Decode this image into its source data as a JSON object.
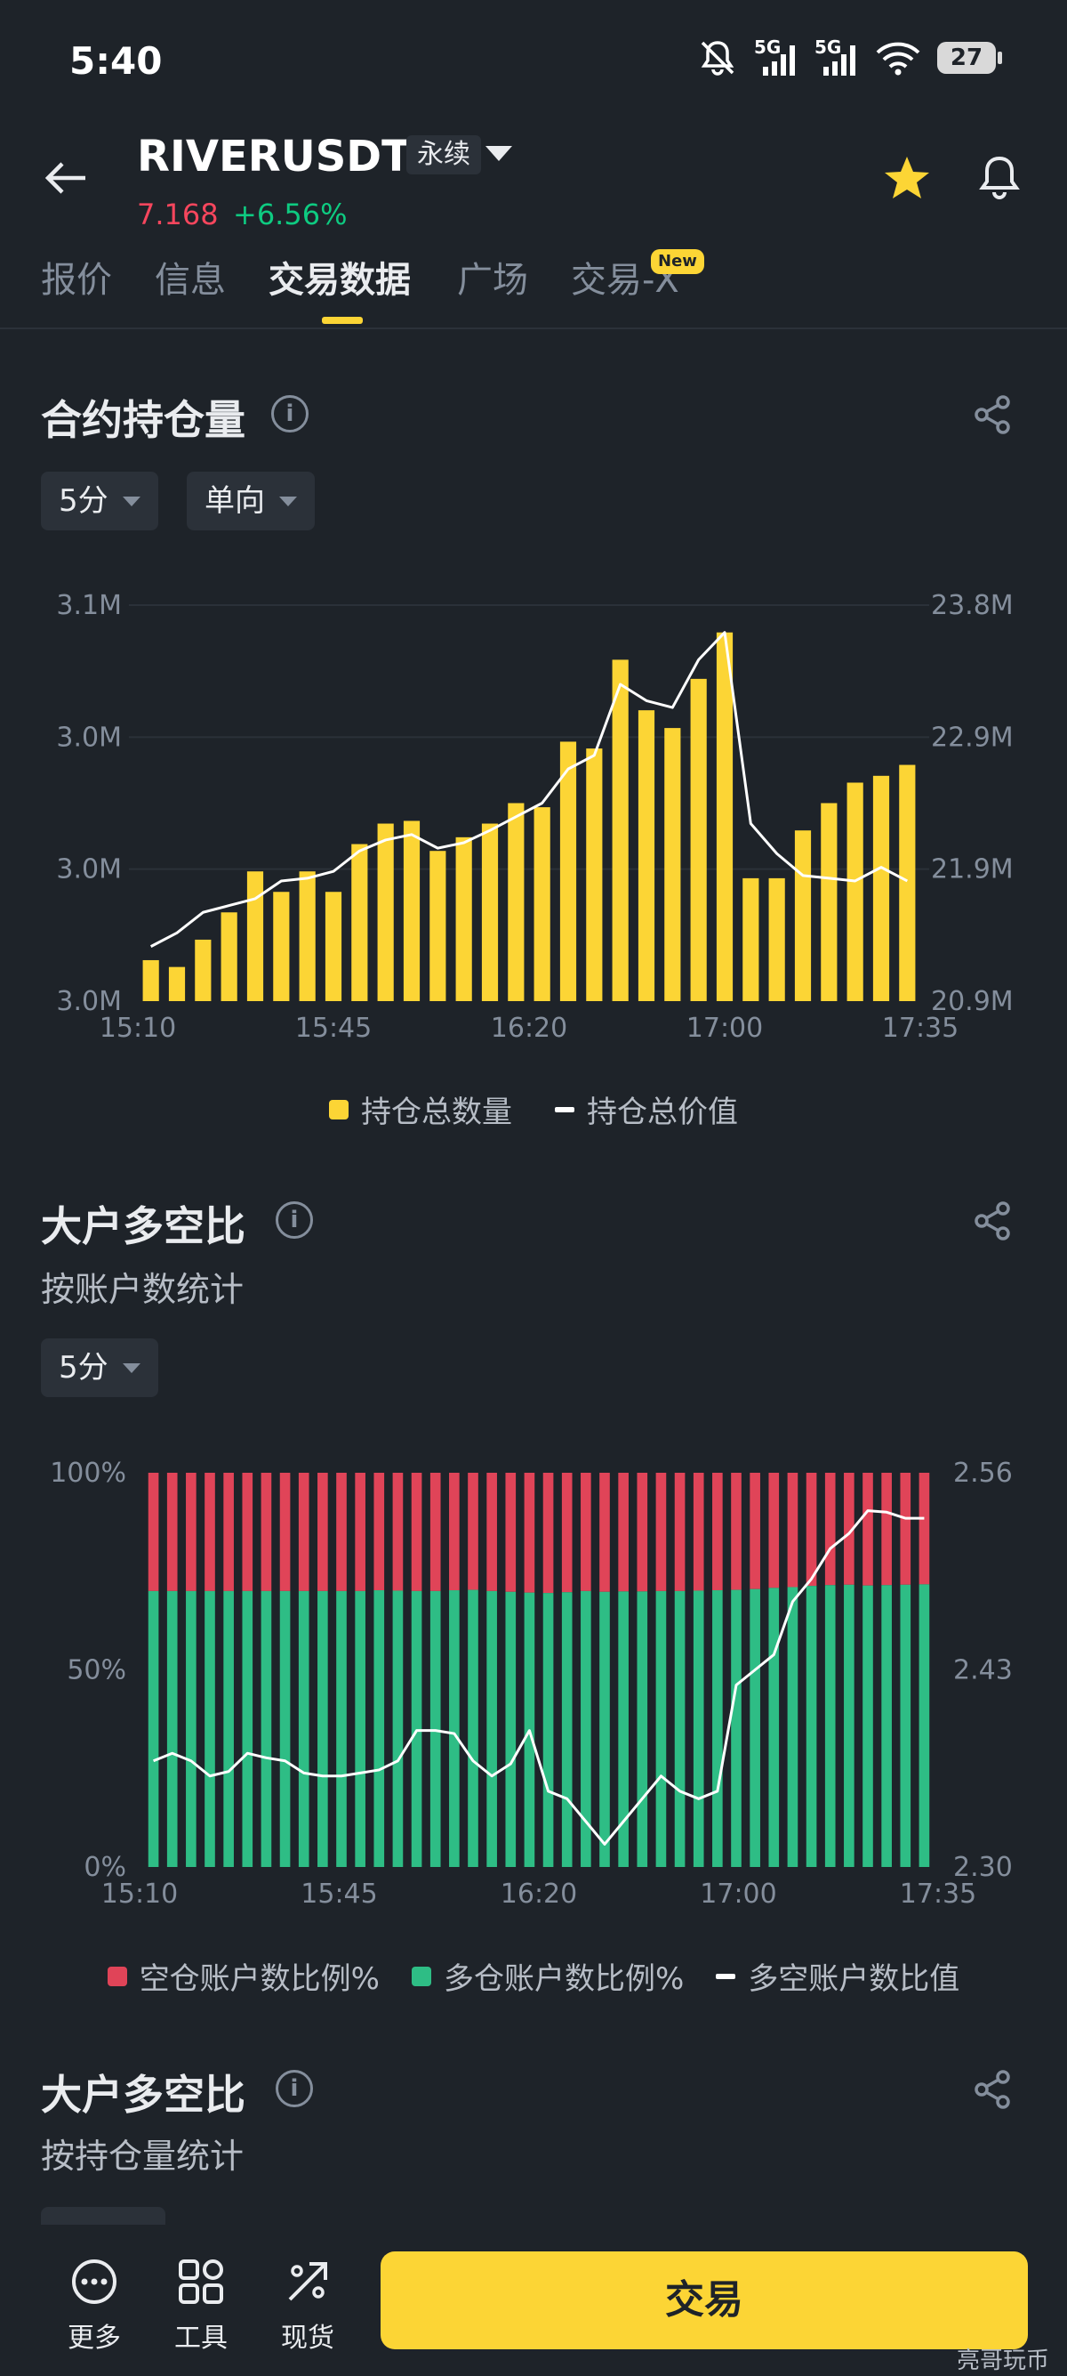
{
  "status_bar": {
    "time": "5:40",
    "battery": "27",
    "network": "5G",
    "icons": [
      "mute-bell-icon",
      "signal-icon",
      "signal-icon",
      "wifi-icon",
      "battery-icon"
    ]
  },
  "header": {
    "symbol": "RIVERUSDT",
    "contract_type": "永续",
    "price": "7.168",
    "change": "+6.56%"
  },
  "tabs": [
    {
      "label": "报价",
      "active": false
    },
    {
      "label": "信息",
      "active": false
    },
    {
      "label": "交易数据",
      "active": true
    },
    {
      "label": "广场",
      "active": false
    },
    {
      "label": "交易-X",
      "active": false,
      "badge": "New"
    }
  ],
  "section1": {
    "title": "合约持仓量",
    "filters": [
      "5分",
      "单向"
    ],
    "legend": [
      "持仓总数量",
      "持仓总价值"
    ]
  },
  "section2": {
    "title": "大户多空比",
    "subtitle": "按账户数统计",
    "filters": [
      "5分"
    ],
    "legend": [
      "空仓账户数比例%",
      "多仓账户数比例%",
      "多空账户数比值"
    ]
  },
  "section3": {
    "title": "大户多空比",
    "subtitle": "按持仓量统计"
  },
  "bottom_nav": {
    "items": [
      "更多",
      "工具",
      "现货"
    ],
    "trade": "交易"
  },
  "watermark": "亮哥玩币",
  "colors": {
    "accent": "#fcd535",
    "up": "#0ecb81",
    "down": "#f6465d",
    "long": "#2ebd85",
    "short": "#e04458",
    "bg": "#1e2329"
  },
  "chart_data": [
    {
      "type": "bar",
      "title": "合约持仓量",
      "x_ticks": [
        "15:10",
        "15:45",
        "16:20",
        "17:00",
        "17:35"
      ],
      "left_axis_ticks": [
        "3.0M",
        "3.0M",
        "3.0M",
        "3.1M"
      ],
      "right_axis_ticks": [
        "20.9M",
        "21.9M",
        "22.9M",
        "23.8M"
      ],
      "ylim_right": [
        20.9,
        23.8
      ],
      "series": [
        {
          "name": "持仓总数量",
          "color": "#fcd535",
          "axis": "right",
          "values": [
            21.2,
            21.15,
            21.35,
            21.55,
            21.85,
            21.7,
            21.85,
            21.7,
            22.05,
            22.2,
            22.22,
            22.0,
            22.1,
            22.2,
            22.35,
            22.32,
            22.8,
            22.75,
            23.4,
            23.03,
            22.9,
            23.26,
            23.6,
            21.8,
            21.8,
            22.15,
            22.35,
            22.5,
            22.55,
            22.63
          ]
        },
        {
          "name": "持仓总价值",
          "color": "#ffffff",
          "axis": "right",
          "type": "line",
          "values": [
            21.3,
            21.4,
            21.55,
            21.6,
            21.65,
            21.78,
            21.8,
            21.85,
            22.0,
            22.08,
            22.12,
            22.02,
            22.06,
            22.15,
            22.25,
            22.35,
            22.6,
            22.7,
            23.22,
            23.1,
            23.05,
            23.4,
            23.6,
            22.2,
            21.98,
            21.82,
            21.8,
            21.78,
            21.88,
            21.78
          ]
        }
      ]
    },
    {
      "type": "bar",
      "title": "大户多空比",
      "x_ticks": [
        "15:10",
        "15:45",
        "16:20",
        "17:00",
        "17:35"
      ],
      "left_axis_ticks": [
        "0%",
        "50%",
        "100%"
      ],
      "right_axis_ticks": [
        "2.30",
        "2.43",
        "2.56"
      ],
      "ylim_right": [
        2.3,
        2.56
      ],
      "series": [
        {
          "name": "多仓账户数比例%",
          "color": "#2ebd85",
          "values": [
            70.0,
            70.0,
            70.0,
            70.0,
            70.0,
            70.0,
            70.0,
            70.0,
            70.0,
            70.0,
            70.0,
            70.0,
            70.2,
            70.1,
            70.0,
            70.0,
            70.2,
            70.3,
            70.0,
            69.8,
            69.6,
            69.5,
            69.7,
            70.0,
            69.8,
            69.9,
            69.9,
            70.0,
            70.0,
            70.1,
            70.2,
            70.3,
            70.5,
            70.8,
            71.0,
            71.3,
            71.5,
            71.6,
            71.4,
            71.5,
            71.6,
            71.7
          ]
        },
        {
          "name": "空仓账户数比例%",
          "color": "#e04458",
          "stacked": true
        },
        {
          "name": "多空账户数比值",
          "color": "#ffffff",
          "type": "line",
          "values": [
            2.37,
            2.375,
            2.37,
            2.36,
            2.363,
            2.375,
            2.372,
            2.37,
            2.362,
            2.36,
            2.36,
            2.362,
            2.364,
            2.37,
            2.39,
            2.39,
            2.388,
            2.37,
            2.36,
            2.368,
            2.39,
            2.35,
            2.345,
            2.33,
            2.315,
            2.33,
            2.345,
            2.36,
            2.35,
            2.345,
            2.35,
            2.42,
            2.43,
            2.44,
            2.475,
            2.49,
            2.51,
            2.52,
            2.535,
            2.534,
            2.53,
            2.53
          ]
        }
      ]
    }
  ]
}
